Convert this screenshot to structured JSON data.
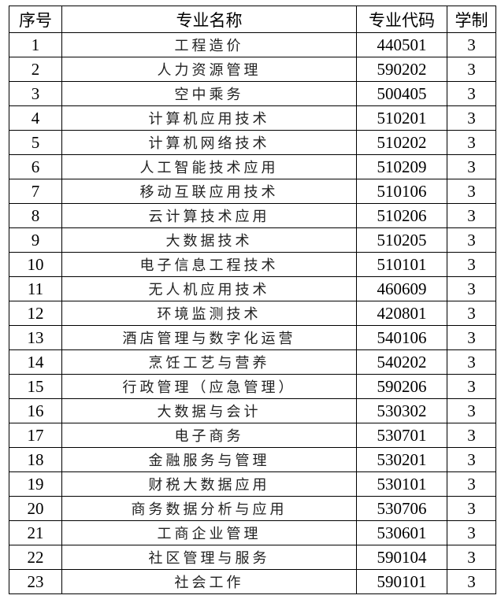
{
  "headers": {
    "index": "序号",
    "name": "专业名称",
    "code": "专业代码",
    "years": "学制"
  },
  "rows": [
    {
      "index": "1",
      "name": "工程造价",
      "code": "440501",
      "years": "3"
    },
    {
      "index": "2",
      "name": "人力资源管理",
      "code": "590202",
      "years": "3"
    },
    {
      "index": "3",
      "name": "空中乘务",
      "code": "500405",
      "years": "3"
    },
    {
      "index": "4",
      "name": "计算机应用技术",
      "code": "510201",
      "years": "3"
    },
    {
      "index": "5",
      "name": "计算机网络技术",
      "code": "510202",
      "years": "3"
    },
    {
      "index": "6",
      "name": "人工智能技术应用",
      "code": "510209",
      "years": "3"
    },
    {
      "index": "7",
      "name": "移动互联应用技术",
      "code": "510106",
      "years": "3"
    },
    {
      "index": "8",
      "name": "云计算技术应用",
      "code": "510206",
      "years": "3"
    },
    {
      "index": "9",
      "name": "大数据技术",
      "code": "510205",
      "years": "3"
    },
    {
      "index": "10",
      "name": "电子信息工程技术",
      "code": "510101",
      "years": "3"
    },
    {
      "index": "11",
      "name": "无人机应用技术",
      "code": "460609",
      "years": "3"
    },
    {
      "index": "12",
      "name": "环境监测技术",
      "code": "420801",
      "years": "3"
    },
    {
      "index": "13",
      "name": "酒店管理与数字化运营",
      "code": "540106",
      "years": "3"
    },
    {
      "index": "14",
      "name": "烹饪工艺与营养",
      "code": "540202",
      "years": "3"
    },
    {
      "index": "15",
      "name": "行政管理（应急管理）",
      "code": "590206",
      "years": "3"
    },
    {
      "index": "16",
      "name": "大数据与会计",
      "code": "530302",
      "years": "3"
    },
    {
      "index": "17",
      "name": "电子商务",
      "code": "530701",
      "years": "3"
    },
    {
      "index": "18",
      "name": "金融服务与管理",
      "code": "530201",
      "years": "3"
    },
    {
      "index": "19",
      "name": "财税大数据应用",
      "code": "530101",
      "years": "3"
    },
    {
      "index": "20",
      "name": "商务数据分析与应用",
      "code": "530706",
      "years": "3"
    },
    {
      "index": "21",
      "name": "工商企业管理",
      "code": "530601",
      "years": "3"
    },
    {
      "index": "22",
      "name": "社区管理与服务",
      "code": "590104",
      "years": "3"
    },
    {
      "index": "23",
      "name": "社会工作",
      "code": "590101",
      "years": "3"
    }
  ]
}
